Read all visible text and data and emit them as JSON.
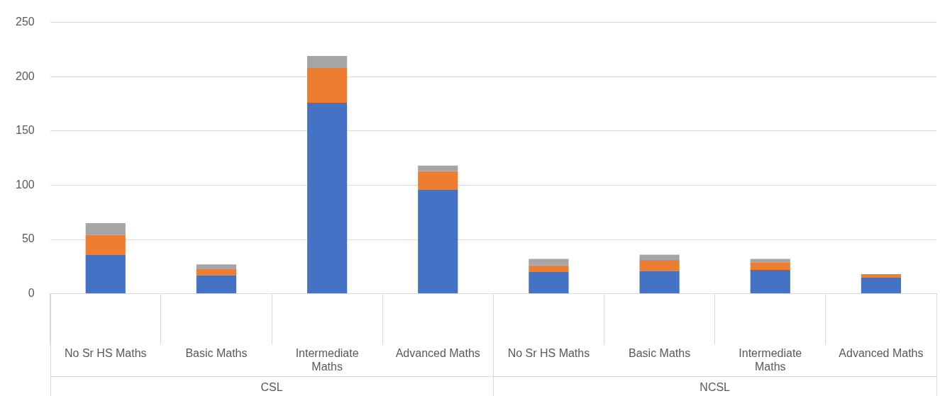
{
  "chart_data": {
    "type": "bar",
    "stacked": true,
    "categories": [
      "No Sr HS Maths",
      "Basic Maths",
      "Intermediate Maths",
      "Advanced Maths",
      "No Sr HS Maths",
      "Basic Maths",
      "Intermediate Maths",
      "Advanced Maths"
    ],
    "series": [
      {
        "color": "#4472c4",
        "values": [
          36,
          17,
          176,
          96,
          20,
          21,
          22,
          15
        ]
      },
      {
        "color": "#ed7d31",
        "values": [
          18,
          6,
          32,
          17,
          6,
          10,
          7,
          3
        ]
      },
      {
        "color": "#a5a5a5",
        "values": [
          11,
          4,
          11,
          5,
          6,
          5,
          3,
          0
        ]
      }
    ],
    "ylim": [
      0,
      250
    ],
    "yticks": [
      0,
      50,
      100,
      150,
      200,
      250
    ],
    "grid": "y",
    "legend": false,
    "annotations": [
      "CSL",
      "NCSL"
    ]
  }
}
